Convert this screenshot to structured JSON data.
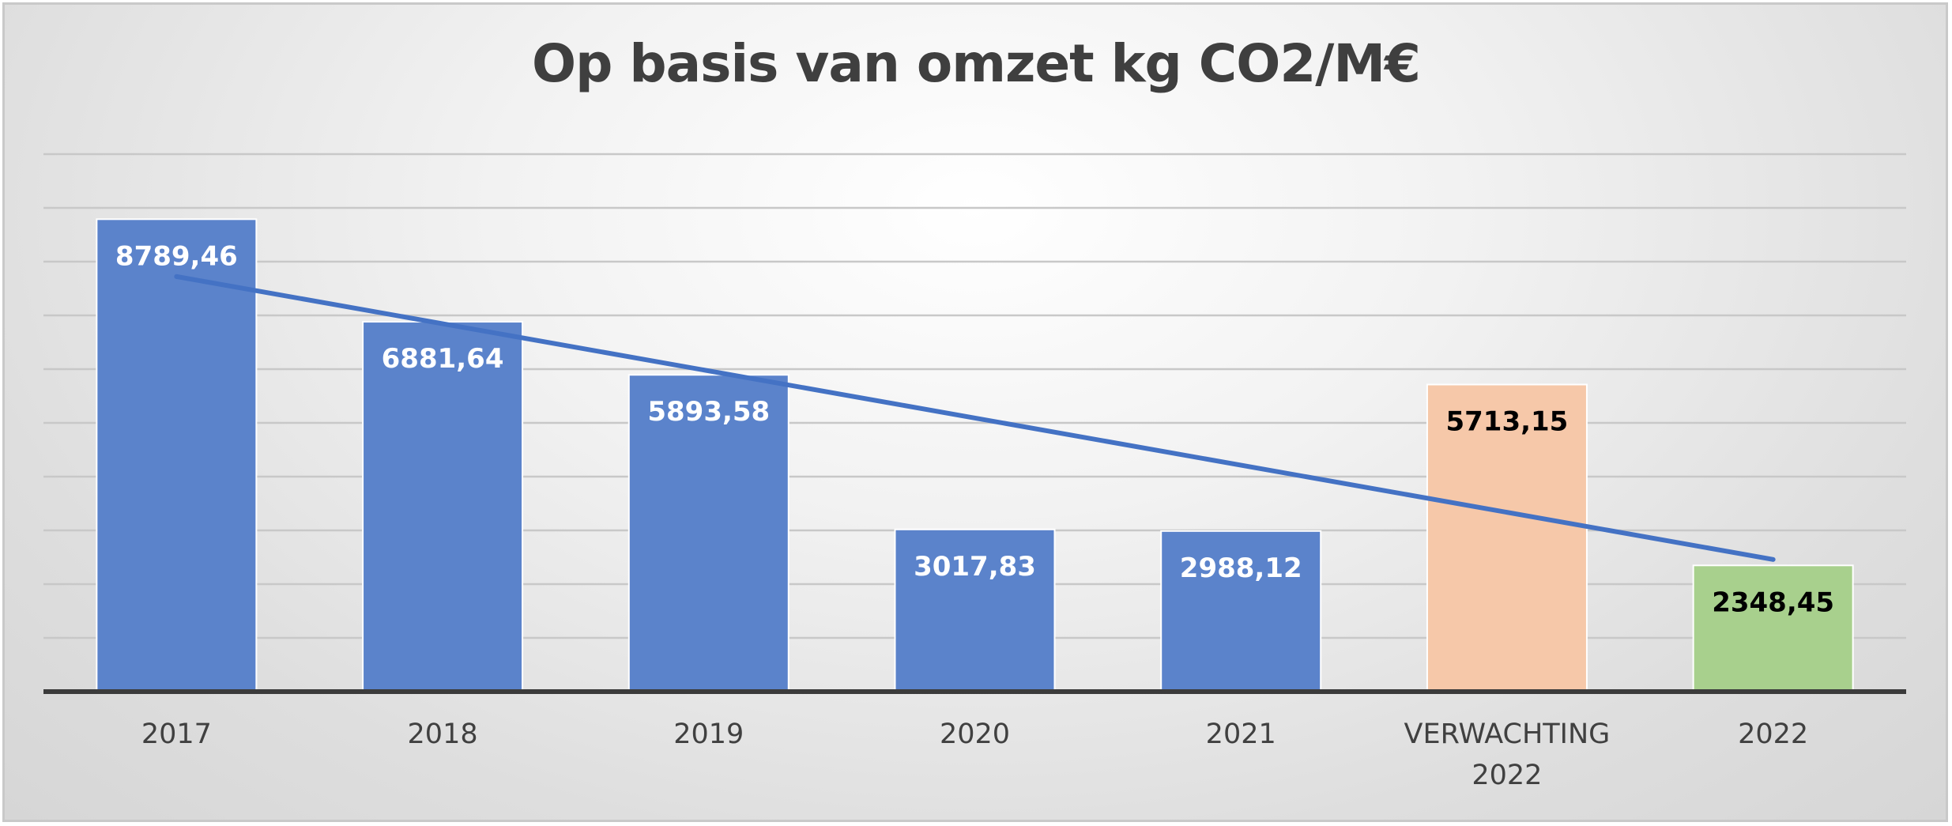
{
  "chart_data": {
    "type": "bar",
    "title": "Op basis van omzet kg CO2/M€",
    "xlabel": "",
    "ylabel": "",
    "ylim": [
      0,
      10000
    ],
    "grid": true,
    "legend": "none",
    "categories": [
      [
        "2017"
      ],
      [
        "2018"
      ],
      [
        "2019"
      ],
      [
        "2020"
      ],
      [
        "2021"
      ],
      [
        "VERWACHTING",
        "2022"
      ],
      [
        "2022"
      ]
    ],
    "values": [
      8789.46,
      6881.64,
      5893.58,
      3017.83,
      2988.12,
      5713.15,
      2348.45
    ],
    "value_labels": [
      "8789,46",
      "6881,64",
      "5893,58",
      "3017,83",
      "2988,12",
      "5713,15",
      "2348,45"
    ],
    "bar_colors": [
      "#5b83cb",
      "#5b83cb",
      "#5b83cb",
      "#5b83cb",
      "#5b83cb",
      "#f6c8a9",
      "#a8d08d"
    ],
    "label_colors": [
      "#ffffff",
      "#ffffff",
      "#ffffff",
      "#ffffff",
      "#ffffff",
      "#000000",
      "#000000"
    ],
    "trendline": {
      "type": "linear",
      "color": "#4472c4"
    }
  }
}
